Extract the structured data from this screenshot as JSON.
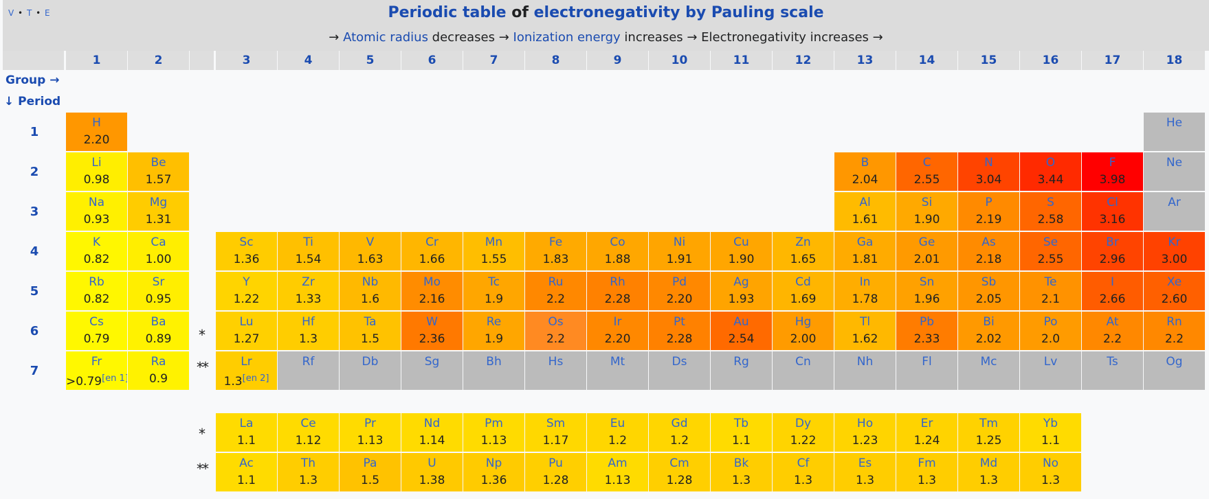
{
  "header": {
    "vte": [
      "V",
      "T",
      "E"
    ],
    "title_part1": "Periodic table",
    "title_part2": " of ",
    "title_part3": "electronegativity by Pauling scale",
    "sub": [
      {
        "t": "→ ",
        "link": false
      },
      {
        "t": "Atomic radius",
        "link": true
      },
      {
        "t": " decreases → ",
        "link": false
      },
      {
        "t": "Ionization energy",
        "link": true
      },
      {
        "t": " increases → Electronegativity increases →",
        "link": false
      }
    ]
  },
  "axis": {
    "group_label": "Group →",
    "period_label": "↓ Period"
  },
  "groups": [
    "1",
    "2",
    "3",
    "4",
    "5",
    "6",
    "7",
    "8",
    "9",
    "10",
    "11",
    "12",
    "13",
    "14",
    "15",
    "16",
    "17",
    "18"
  ],
  "periods": [
    "1",
    "2",
    "3",
    "4",
    "5",
    "6",
    "7"
  ],
  "f_markers": [
    "*",
    "**"
  ],
  "elements": [
    {
      "s": "H",
      "v": "2.20",
      "g": 1,
      "p": 1,
      "c": "#ff9700"
    },
    {
      "s": "He",
      "v": "",
      "g": 18,
      "p": 1,
      "c": "#bbbbbb"
    },
    {
      "s": "Li",
      "v": "0.98",
      "g": 1,
      "p": 2,
      "c": "#ffee00"
    },
    {
      "s": "Be",
      "v": "1.57",
      "g": 2,
      "p": 2,
      "c": "#ffbf00"
    },
    {
      "s": "B",
      "v": "2.04",
      "g": 13,
      "p": 2,
      "c": "#ff9700"
    },
    {
      "s": "C",
      "v": "2.55",
      "g": 14,
      "p": 2,
      "c": "#ff6600"
    },
    {
      "s": "N",
      "v": "3.04",
      "g": 15,
      "p": 2,
      "c": "#ff4400"
    },
    {
      "s": "O",
      "v": "3.44",
      "g": 16,
      "p": 2,
      "c": "#ff2a00"
    },
    {
      "s": "F",
      "v": "3.98",
      "g": 17,
      "p": 2,
      "c": "#ff0000"
    },
    {
      "s": "Ne",
      "v": "",
      "g": 18,
      "p": 2,
      "c": "#bbbbbb"
    },
    {
      "s": "Na",
      "v": "0.93",
      "g": 1,
      "p": 3,
      "c": "#fff000"
    },
    {
      "s": "Mg",
      "v": "1.31",
      "g": 2,
      "p": 3,
      "c": "#ffcc00"
    },
    {
      "s": "Al",
      "v": "1.61",
      "g": 13,
      "p": 3,
      "c": "#ffbb00"
    },
    {
      "s": "Si",
      "v": "1.90",
      "g": 14,
      "p": 3,
      "c": "#ffa900"
    },
    {
      "s": "P",
      "v": "2.19",
      "g": 15,
      "p": 3,
      "c": "#ff8a00"
    },
    {
      "s": "S",
      "v": "2.58",
      "g": 16,
      "p": 3,
      "c": "#ff6600"
    },
    {
      "s": "Cl",
      "v": "3.16",
      "g": 17,
      "p": 3,
      "c": "#ff3300"
    },
    {
      "s": "Ar",
      "v": "",
      "g": 18,
      "p": 3,
      "c": "#bbbbbb"
    },
    {
      "s": "K",
      "v": "0.82",
      "g": 1,
      "p": 4,
      "c": "#fff700"
    },
    {
      "s": "Ca",
      "v": "1.00",
      "g": 2,
      "p": 4,
      "c": "#ffee00"
    },
    {
      "s": "Sc",
      "v": "1.36",
      "g": 3,
      "p": 4,
      "c": "#ffcc00"
    },
    {
      "s": "Ti",
      "v": "1.54",
      "g": 4,
      "p": 4,
      "c": "#ffc000"
    },
    {
      "s": "V",
      "v": "1.63",
      "g": 5,
      "p": 4,
      "c": "#ffb800"
    },
    {
      "s": "Cr",
      "v": "1.66",
      "g": 6,
      "p": 4,
      "c": "#ffb600"
    },
    {
      "s": "Mn",
      "v": "1.55",
      "g": 7,
      "p": 4,
      "c": "#ffbe00"
    },
    {
      "s": "Fe",
      "v": "1.83",
      "g": 8,
      "p": 4,
      "c": "#ffaa00"
    },
    {
      "s": "Co",
      "v": "1.88",
      "g": 9,
      "p": 4,
      "c": "#ffa700"
    },
    {
      "s": "Ni",
      "v": "1.91",
      "g": 10,
      "p": 4,
      "c": "#ffa500"
    },
    {
      "s": "Cu",
      "v": "1.90",
      "g": 11,
      "p": 4,
      "c": "#ffa600"
    },
    {
      "s": "Zn",
      "v": "1.65",
      "g": 12,
      "p": 4,
      "c": "#ffb700"
    },
    {
      "s": "Ga",
      "v": "1.81",
      "g": 13,
      "p": 4,
      "c": "#ffab00"
    },
    {
      "s": "Ge",
      "v": "2.01",
      "g": 14,
      "p": 4,
      "c": "#ff9a00"
    },
    {
      "s": "As",
      "v": "2.18",
      "g": 15,
      "p": 4,
      "c": "#ff8b00"
    },
    {
      "s": "Se",
      "v": "2.55",
      "g": 16,
      "p": 4,
      "c": "#ff6600"
    },
    {
      "s": "Br",
      "v": "2.96",
      "g": 17,
      "p": 4,
      "c": "#ff4400"
    },
    {
      "s": "Kr",
      "v": "3.00",
      "g": 18,
      "p": 4,
      "c": "#ff4200"
    },
    {
      "s": "Rb",
      "v": "0.82",
      "g": 1,
      "p": 5,
      "c": "#fff700"
    },
    {
      "s": "Sr",
      "v": "0.95",
      "g": 2,
      "p": 5,
      "c": "#ffee00"
    },
    {
      "s": "Y",
      "v": "1.22",
      "g": 3,
      "p": 5,
      "c": "#ffd400"
    },
    {
      "s": "Zr",
      "v": "1.33",
      "g": 4,
      "p": 5,
      "c": "#ffcc00"
    },
    {
      "s": "Nb",
      "v": "1.6",
      "g": 5,
      "p": 5,
      "c": "#ffb900"
    },
    {
      "s": "Mo",
      "v": "2.16",
      "g": 6,
      "p": 5,
      "c": "#ff8c00"
    },
    {
      "s": "Tc",
      "v": "1.9",
      "g": 7,
      "p": 5,
      "c": "#ffa600"
    },
    {
      "s": "Ru",
      "v": "2.2",
      "g": 8,
      "p": 5,
      "c": "#ff8800"
    },
    {
      "s": "Rh",
      "v": "2.28",
      "g": 9,
      "p": 5,
      "c": "#ff8100"
    },
    {
      "s": "Pd",
      "v": "2.20",
      "g": 10,
      "p": 5,
      "c": "#ff8800"
    },
    {
      "s": "Ag",
      "v": "1.93",
      "g": 11,
      "p": 5,
      "c": "#ffa400"
    },
    {
      "s": "Cd",
      "v": "1.69",
      "g": 12,
      "p": 5,
      "c": "#ffb500"
    },
    {
      "s": "In",
      "v": "1.78",
      "g": 13,
      "p": 5,
      "c": "#ffad00"
    },
    {
      "s": "Sn",
      "v": "1.96",
      "g": 14,
      "p": 5,
      "c": "#ffa100"
    },
    {
      "s": "Sb",
      "v": "2.05",
      "g": 15,
      "p": 5,
      "c": "#ff9600"
    },
    {
      "s": "Te",
      "v": "2.1",
      "g": 16,
      "p": 5,
      "c": "#ff9200"
    },
    {
      "s": "I",
      "v": "2.66",
      "g": 17,
      "p": 5,
      "c": "#ff5c00"
    },
    {
      "s": "Xe",
      "v": "2.60",
      "g": 18,
      "p": 5,
      "c": "#ff6000"
    },
    {
      "s": "Cs",
      "v": "0.79",
      "g": 1,
      "p": 6,
      "c": "#fff800"
    },
    {
      "s": "Ba",
      "v": "0.89",
      "g": 2,
      "p": 6,
      "c": "#fff200"
    },
    {
      "s": "Lu",
      "v": "1.27",
      "g": 3,
      "p": 6,
      "c": "#ffd000"
    },
    {
      "s": "Hf",
      "v": "1.3",
      "g": 4,
      "p": 6,
      "c": "#ffcd00"
    },
    {
      "s": "Ta",
      "v": "1.5",
      "g": 5,
      "p": 6,
      "c": "#ffc200"
    },
    {
      "s": "W",
      "v": "2.36",
      "g": 6,
      "p": 6,
      "c": "#ff7900"
    },
    {
      "s": "Re",
      "v": "1.9",
      "g": 7,
      "p": 6,
      "c": "#ffa600"
    },
    {
      "s": "Os",
      "v": "2.2",
      "g": 8,
      "p": 6,
      "c": "#ff8a22"
    },
    {
      "s": "Ir",
      "v": "2.20",
      "g": 9,
      "p": 6,
      "c": "#ff8800"
    },
    {
      "s": "Pt",
      "v": "2.28",
      "g": 10,
      "p": 6,
      "c": "#ff8100"
    },
    {
      "s": "Au",
      "v": "2.54",
      "g": 11,
      "p": 6,
      "c": "#ff6a00"
    },
    {
      "s": "Hg",
      "v": "2.00",
      "g": 12,
      "p": 6,
      "c": "#ff9b00"
    },
    {
      "s": "Tl",
      "v": "1.62",
      "g": 13,
      "p": 6,
      "c": "#ffb800"
    },
    {
      "s": "Pb",
      "v": "2.33",
      "g": 14,
      "p": 6,
      "c": "#ff7c00"
    },
    {
      "s": "Bi",
      "v": "2.02",
      "g": 15,
      "p": 6,
      "c": "#ff9900"
    },
    {
      "s": "Po",
      "v": "2.0",
      "g": 16,
      "p": 6,
      "c": "#ff9b00"
    },
    {
      "s": "At",
      "v": "2.2",
      "g": 17,
      "p": 6,
      "c": "#ff8800"
    },
    {
      "s": "Rn",
      "v": "2.2",
      "g": 18,
      "p": 6,
      "c": "#ff8800"
    },
    {
      "s": "Fr",
      "v": ">0.79",
      "sup": "[en 1]",
      "g": 1,
      "p": 7,
      "c": "#fff800"
    },
    {
      "s": "Ra",
      "v": "0.9",
      "g": 2,
      "p": 7,
      "c": "#fff200"
    },
    {
      "s": "Lr",
      "v": "1.3",
      "sup": "[en 2]",
      "g": 3,
      "p": 7,
      "c": "#ffcd00"
    },
    {
      "s": "Rf",
      "v": "",
      "g": 4,
      "p": 7,
      "c": "#bbbbbb"
    },
    {
      "s": "Db",
      "v": "",
      "g": 5,
      "p": 7,
      "c": "#bbbbbb"
    },
    {
      "s": "Sg",
      "v": "",
      "g": 6,
      "p": 7,
      "c": "#bbbbbb"
    },
    {
      "s": "Bh",
      "v": "",
      "g": 7,
      "p": 7,
      "c": "#bbbbbb"
    },
    {
      "s": "Hs",
      "v": "",
      "g": 8,
      "p": 7,
      "c": "#bbbbbb"
    },
    {
      "s": "Mt",
      "v": "",
      "g": 9,
      "p": 7,
      "c": "#bbbbbb"
    },
    {
      "s": "Ds",
      "v": "",
      "g": 10,
      "p": 7,
      "c": "#bbbbbb"
    },
    {
      "s": "Rg",
      "v": "",
      "g": 11,
      "p": 7,
      "c": "#bbbbbb"
    },
    {
      "s": "Cn",
      "v": "",
      "g": 12,
      "p": 7,
      "c": "#bbbbbb"
    },
    {
      "s": "Nh",
      "v": "",
      "g": 13,
      "p": 7,
      "c": "#bbbbbb"
    },
    {
      "s": "Fl",
      "v": "",
      "g": 14,
      "p": 7,
      "c": "#bbbbbb"
    },
    {
      "s": "Mc",
      "v": "",
      "g": 15,
      "p": 7,
      "c": "#bbbbbb"
    },
    {
      "s": "Lv",
      "v": "",
      "g": 16,
      "p": 7,
      "c": "#bbbbbb"
    },
    {
      "s": "Ts",
      "v": "",
      "g": 17,
      "p": 7,
      "c": "#bbbbbb"
    },
    {
      "s": "Og",
      "v": "",
      "g": 18,
      "p": 7,
      "c": "#bbbbbb"
    },
    {
      "s": "La",
      "v": "1.1",
      "g": 3,
      "p": "*",
      "c": "#ffdb00"
    },
    {
      "s": "Ce",
      "v": "1.12",
      "g": 4,
      "p": "*",
      "c": "#ffdb00"
    },
    {
      "s": "Pr",
      "v": "1.13",
      "g": 5,
      "p": "*",
      "c": "#ffdb00"
    },
    {
      "s": "Nd",
      "v": "1.14",
      "g": 6,
      "p": "*",
      "c": "#ffdb00"
    },
    {
      "s": "Pm",
      "v": "1.13",
      "g": 7,
      "p": "*",
      "c": "#ffdb00"
    },
    {
      "s": "Sm",
      "v": "1.17",
      "g": 8,
      "p": "*",
      "c": "#ffd800"
    },
    {
      "s": "Eu",
      "v": "1.2",
      "g": 9,
      "p": "*",
      "c": "#ffd600"
    },
    {
      "s": "Gd",
      "v": "1.2",
      "g": 10,
      "p": "*",
      "c": "#ffd600"
    },
    {
      "s": "Tb",
      "v": "1.1",
      "g": 11,
      "p": "*",
      "c": "#ffdb00"
    },
    {
      "s": "Dy",
      "v": "1.22",
      "g": 12,
      "p": "*",
      "c": "#ffd400"
    },
    {
      "s": "Ho",
      "v": "1.23",
      "g": 13,
      "p": "*",
      "c": "#ffd400"
    },
    {
      "s": "Er",
      "v": "1.24",
      "g": 14,
      "p": "*",
      "c": "#ffd300"
    },
    {
      "s": "Tm",
      "v": "1.25",
      "g": 15,
      "p": "*",
      "c": "#ffd200"
    },
    {
      "s": "Yb",
      "v": "1.1",
      "g": 16,
      "p": "*",
      "c": "#ffdb00"
    },
    {
      "s": "Ac",
      "v": "1.1",
      "g": 3,
      "p": "**",
      "c": "#ffdb00"
    },
    {
      "s": "Th",
      "v": "1.3",
      "g": 4,
      "p": "**",
      "c": "#ffcd00"
    },
    {
      "s": "Pa",
      "v": "1.5",
      "g": 5,
      "p": "**",
      "c": "#ffc200"
    },
    {
      "s": "U",
      "v": "1.38",
      "g": 6,
      "p": "**",
      "c": "#ffc900"
    },
    {
      "s": "Np",
      "v": "1.36",
      "g": 7,
      "p": "**",
      "c": "#ffcb00"
    },
    {
      "s": "Pu",
      "v": "1.28",
      "g": 8,
      "p": "**",
      "c": "#ffcf00"
    },
    {
      "s": "Am",
      "v": "1.13",
      "g": 9,
      "p": "**",
      "c": "#ffdb00"
    },
    {
      "s": "Cm",
      "v": "1.28",
      "g": 10,
      "p": "**",
      "c": "#ffcf00"
    },
    {
      "s": "Bk",
      "v": "1.3",
      "g": 11,
      "p": "**",
      "c": "#ffcd00"
    },
    {
      "s": "Cf",
      "v": "1.3",
      "g": 12,
      "p": "**",
      "c": "#ffcd00"
    },
    {
      "s": "Es",
      "v": "1.3",
      "g": 13,
      "p": "**",
      "c": "#ffcd00"
    },
    {
      "s": "Fm",
      "v": "1.3",
      "g": 14,
      "p": "**",
      "c": "#ffcd00"
    },
    {
      "s": "Md",
      "v": "1.3",
      "g": 15,
      "p": "**",
      "c": "#ffcd00"
    },
    {
      "s": "No",
      "v": "1.3",
      "g": 16,
      "p": "**",
      "c": "#ffcd00"
    }
  ]
}
